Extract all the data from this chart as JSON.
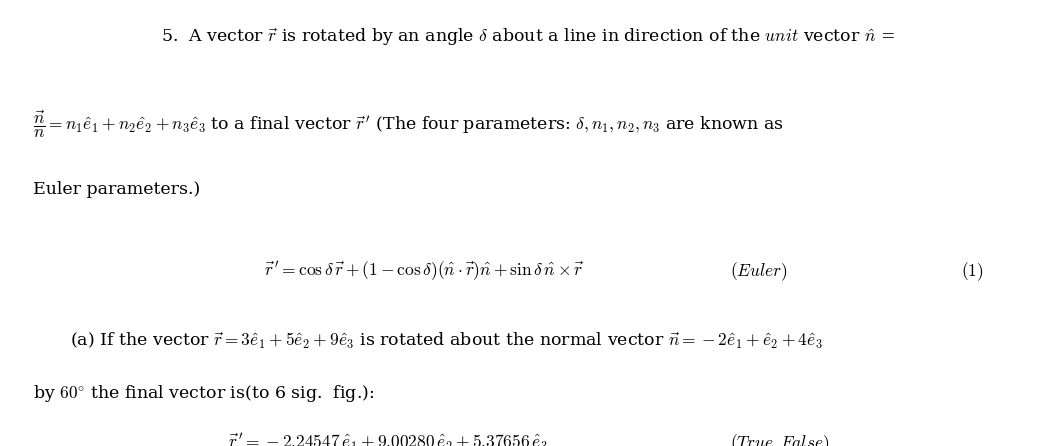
{
  "bg_color": "#ffffff",
  "figsize": [
    10.56,
    4.46
  ],
  "dpi": 100
}
